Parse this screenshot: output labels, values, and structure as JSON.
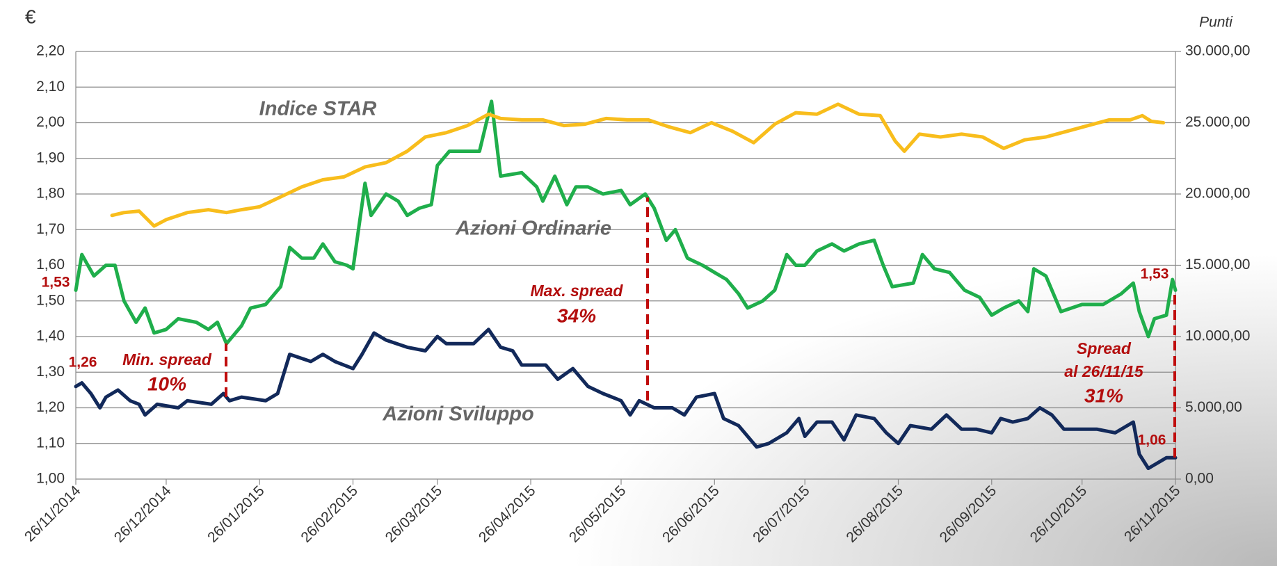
{
  "chart_data": {
    "type": "line",
    "y_unit": "€",
    "y2_unit": "Punti",
    "xlim": [
      "26/11/2014",
      "26/11/2015"
    ],
    "xticks": [
      "26/11/2014",
      "26/12/2014",
      "26/01/2015",
      "26/02/2015",
      "26/03/2015",
      "26/04/2015",
      "26/05/2015",
      "26/06/2015",
      "26/07/2015",
      "26/08/2015",
      "26/09/2015",
      "26/10/2015",
      "26/11/2015"
    ],
    "ylim": [
      1.0,
      2.2
    ],
    "yticks": [
      {
        "value": 1.0,
        "label": "1,00"
      },
      {
        "value": 1.1,
        "label": "1,10"
      },
      {
        "value": 1.2,
        "label": "1,20"
      },
      {
        "value": 1.3,
        "label": "1,30"
      },
      {
        "value": 1.4,
        "label": "1,40"
      },
      {
        "value": 1.5,
        "label": "1,50"
      },
      {
        "value": 1.6,
        "label": "1,60"
      },
      {
        "value": 1.7,
        "label": "1,70"
      },
      {
        "value": 1.8,
        "label": "1,80"
      },
      {
        "value": 1.9,
        "label": "1,90"
      },
      {
        "value": 2.0,
        "label": "2,00"
      },
      {
        "value": 2.1,
        "label": "2,10"
      },
      {
        "value": 2.2,
        "label": "2,20"
      }
    ],
    "y2lim": [
      0,
      30000
    ],
    "y2ticks": [
      {
        "value": 0,
        "label": "0,00"
      },
      {
        "value": 5000,
        "label": "5.000,00"
      },
      {
        "value": 10000,
        "label": "10.000,00"
      },
      {
        "value": 15000,
        "label": "15.000,00"
      },
      {
        "value": 20000,
        "label": "20.000,00"
      },
      {
        "value": 25000,
        "label": "25.000,00"
      },
      {
        "value": 30000,
        "label": "30.000,00"
      }
    ],
    "grid": true,
    "series": [
      {
        "name": "Azioni Ordinarie",
        "color": "#1fae4b",
        "x": [
          "26/11/2014",
          "28/11/2014",
          "02/12/2014",
          "06/12/2014",
          "09/12/2014",
          "12/12/2014",
          "16/12/2014",
          "19/12/2014",
          "22/12/2014",
          "26/12/2014",
          "30/12/2014",
          "05/01/2015",
          "09/01/2015",
          "12/01/2015",
          "15/01/2015",
          "20/01/2015",
          "23/01/2015",
          "28/01/2015",
          "02/02/2015",
          "05/02/2015",
          "09/02/2015",
          "13/02/2015",
          "16/02/2015",
          "20/02/2015",
          "24/02/2015",
          "26/02/2015",
          "02/03/2015",
          "04/03/2015",
          "09/03/2015",
          "13/03/2015",
          "16/03/2015",
          "20/03/2015",
          "24/03/2015",
          "26/03/2015",
          "30/03/2015",
          "09/04/2015",
          "13/04/2015",
          "16/04/2015",
          "23/04/2015",
          "28/04/2015",
          "30/04/2015",
          "04/05/2015",
          "08/05/2015",
          "11/05/2015",
          "15/05/2015",
          "20/05/2015",
          "26/05/2015",
          "29/05/2015",
          "03/06/2015",
          "06/06/2015",
          "10/06/2015",
          "13/06/2015",
          "17/06/2015",
          "22/06/2015",
          "26/06/2015",
          "30/06/2015",
          "04/07/2015",
          "07/07/2015",
          "12/07/2015",
          "16/07/2015",
          "20/07/2015",
          "23/07/2015",
          "26/07/2015",
          "30/07/2015",
          "04/08/2015",
          "08/08/2015",
          "13/08/2015",
          "18/08/2015",
          "21/08/2015",
          "24/08/2015",
          "31/08/2015",
          "03/09/2015",
          "07/09/2015",
          "12/09/2015",
          "17/09/2015",
          "22/09/2015",
          "26/09/2015",
          "30/09/2015",
          "05/10/2015",
          "08/10/2015",
          "10/10/2015",
          "14/10/2015",
          "19/10/2015",
          "26/10/2015",
          "02/11/2015",
          "08/11/2015",
          "12/11/2015",
          "14/11/2015",
          "17/11/2015",
          "19/11/2015",
          "23/11/2015",
          "25/11/2015",
          "26/11/2015"
        ],
        "values": [
          1.53,
          1.63,
          1.57,
          1.6,
          1.6,
          1.5,
          1.44,
          1.48,
          1.41,
          1.42,
          1.45,
          1.44,
          1.42,
          1.44,
          1.38,
          1.43,
          1.48,
          1.49,
          1.54,
          1.65,
          1.62,
          1.62,
          1.66,
          1.61,
          1.6,
          1.59,
          1.83,
          1.74,
          1.8,
          1.78,
          1.74,
          1.76,
          1.77,
          1.88,
          1.92,
          1.92,
          2.06,
          1.85,
          1.86,
          1.82,
          1.78,
          1.85,
          1.77,
          1.82,
          1.82,
          1.8,
          1.81,
          1.77,
          1.8,
          1.76,
          1.67,
          1.7,
          1.62,
          1.6,
          1.58,
          1.56,
          1.52,
          1.48,
          1.5,
          1.53,
          1.63,
          1.6,
          1.6,
          1.64,
          1.66,
          1.64,
          1.66,
          1.67,
          1.6,
          1.54,
          1.55,
          1.63,
          1.59,
          1.58,
          1.53,
          1.51,
          1.46,
          1.48,
          1.5,
          1.47,
          1.59,
          1.57,
          1.47,
          1.49,
          1.49,
          1.52,
          1.55,
          1.47,
          1.4,
          1.45,
          1.46,
          1.56,
          1.53
        ]
      },
      {
        "name": "Azioni Sviluppo",
        "color": "#12295a",
        "x": [
          "26/11/2014",
          "28/11/2014",
          "01/12/2014",
          "04/12/2014",
          "06/12/2014",
          "10/12/2014",
          "14/12/2014",
          "17/12/2014",
          "19/12/2014",
          "23/12/2014",
          "30/12/2014",
          "02/01/2015",
          "10/01/2015",
          "14/01/2015",
          "16/01/2015",
          "20/01/2015",
          "28/01/2015",
          "01/02/2015",
          "05/02/2015",
          "12/02/2015",
          "16/02/2015",
          "20/02/2015",
          "26/02/2015",
          "01/03/2015",
          "05/03/2015",
          "09/03/2015",
          "16/03/2015",
          "22/03/2015",
          "26/03/2015",
          "29/03/2015",
          "07/04/2015",
          "12/04/2015",
          "16/04/2015",
          "20/04/2015",
          "23/04/2015",
          "01/05/2015",
          "05/05/2015",
          "10/05/2015",
          "15/05/2015",
          "20/05/2015",
          "26/05/2015",
          "29/05/2015",
          "01/06/2015",
          "06/06/2015",
          "12/06/2015",
          "16/06/2015",
          "20/06/2015",
          "26/06/2015",
          "29/06/2015",
          "04/07/2015",
          "10/07/2015",
          "14/07/2015",
          "20/07/2015",
          "24/07/2015",
          "26/07/2015",
          "30/07/2015",
          "04/08/2015",
          "08/08/2015",
          "12/08/2015",
          "18/08/2015",
          "22/08/2015",
          "26/08/2015",
          "30/08/2015",
          "06/09/2015",
          "11/09/2015",
          "16/09/2015",
          "21/09/2015",
          "26/09/2015",
          "29/09/2015",
          "03/10/2015",
          "08/10/2015",
          "12/10/2015",
          "16/10/2015",
          "20/10/2015",
          "26/10/2015",
          "31/10/2015",
          "06/11/2015",
          "12/11/2015",
          "14/11/2015",
          "17/11/2015",
          "19/11/2015",
          "23/11/2015",
          "26/11/2015"
        ],
        "values": [
          1.26,
          1.27,
          1.24,
          1.2,
          1.23,
          1.25,
          1.22,
          1.21,
          1.18,
          1.21,
          1.2,
          1.22,
          1.21,
          1.24,
          1.22,
          1.23,
          1.22,
          1.24,
          1.35,
          1.33,
          1.35,
          1.33,
          1.31,
          1.35,
          1.41,
          1.39,
          1.37,
          1.36,
          1.4,
          1.38,
          1.38,
          1.42,
          1.37,
          1.36,
          1.32,
          1.32,
          1.28,
          1.31,
          1.26,
          1.24,
          1.22,
          1.18,
          1.22,
          1.2,
          1.2,
          1.18,
          1.23,
          1.24,
          1.17,
          1.15,
          1.09,
          1.1,
          1.13,
          1.17,
          1.12,
          1.16,
          1.16,
          1.11,
          1.18,
          1.17,
          1.13,
          1.1,
          1.15,
          1.14,
          1.18,
          1.14,
          1.14,
          1.13,
          1.17,
          1.16,
          1.17,
          1.2,
          1.18,
          1.14,
          1.14,
          1.14,
          1.13,
          1.16,
          1.07,
          1.03,
          1.04,
          1.06,
          1.06
        ]
      },
      {
        "name": "Indice STAR",
        "color": "#f8bd1c",
        "axis": "y2",
        "x": [
          "08/12/2014",
          "12/12/2014",
          "17/12/2014",
          "22/12/2014",
          "26/12/2014",
          "02/01/2015",
          "09/01/2015",
          "15/01/2015",
          "20/01/2015",
          "26/01/2015",
          "02/02/2015",
          "09/02/2015",
          "16/02/2015",
          "23/02/2015",
          "02/03/2015",
          "09/03/2015",
          "16/03/2015",
          "22/03/2015",
          "29/03/2015",
          "05/04/2015",
          "12/04/2015",
          "16/04/2015",
          "23/04/2015",
          "30/04/2015",
          "07/05/2015",
          "14/05/2015",
          "21/05/2015",
          "28/05/2015",
          "04/06/2015",
          "11/06/2015",
          "18/06/2015",
          "25/06/2015",
          "02/07/2015",
          "09/07/2015",
          "16/07/2015",
          "23/07/2015",
          "30/07/2015",
          "06/08/2015",
          "13/08/2015",
          "20/08/2015",
          "25/08/2015",
          "28/08/2015",
          "02/09/2015",
          "09/09/2015",
          "16/09/2015",
          "23/09/2015",
          "30/09/2015",
          "07/10/2015",
          "14/10/2015",
          "21/10/2015",
          "28/10/2015",
          "04/11/2015",
          "11/11/2015",
          "15/11/2015",
          "18/11/2015",
          "22/11/2015"
        ],
        "values": [
          18500,
          18700,
          18800,
          17750,
          18200,
          18700,
          18900,
          18700,
          18900,
          19100,
          19800,
          20500,
          21000,
          21200,
          21900,
          22200,
          23000,
          24000,
          24300,
          24800,
          25600,
          25300,
          25200,
          25200,
          24800,
          24900,
          25300,
          25200,
          25200,
          24700,
          24300,
          25000,
          24400,
          23600,
          24900,
          25700,
          25600,
          26300,
          25600,
          25500,
          23700,
          23000,
          24200,
          24000,
          24200,
          24000,
          23200,
          23800,
          24000,
          24400,
          24800,
          25200,
          25200,
          25500,
          25100,
          25000
        ]
      }
    ],
    "annotations": [
      "1,53",
      "1,26",
      "Min. spread",
      "10%",
      "Max. spread",
      "34%",
      "Spread",
      "al 26/11/15",
      "31%",
      "1,53",
      "1,06"
    ]
  }
}
